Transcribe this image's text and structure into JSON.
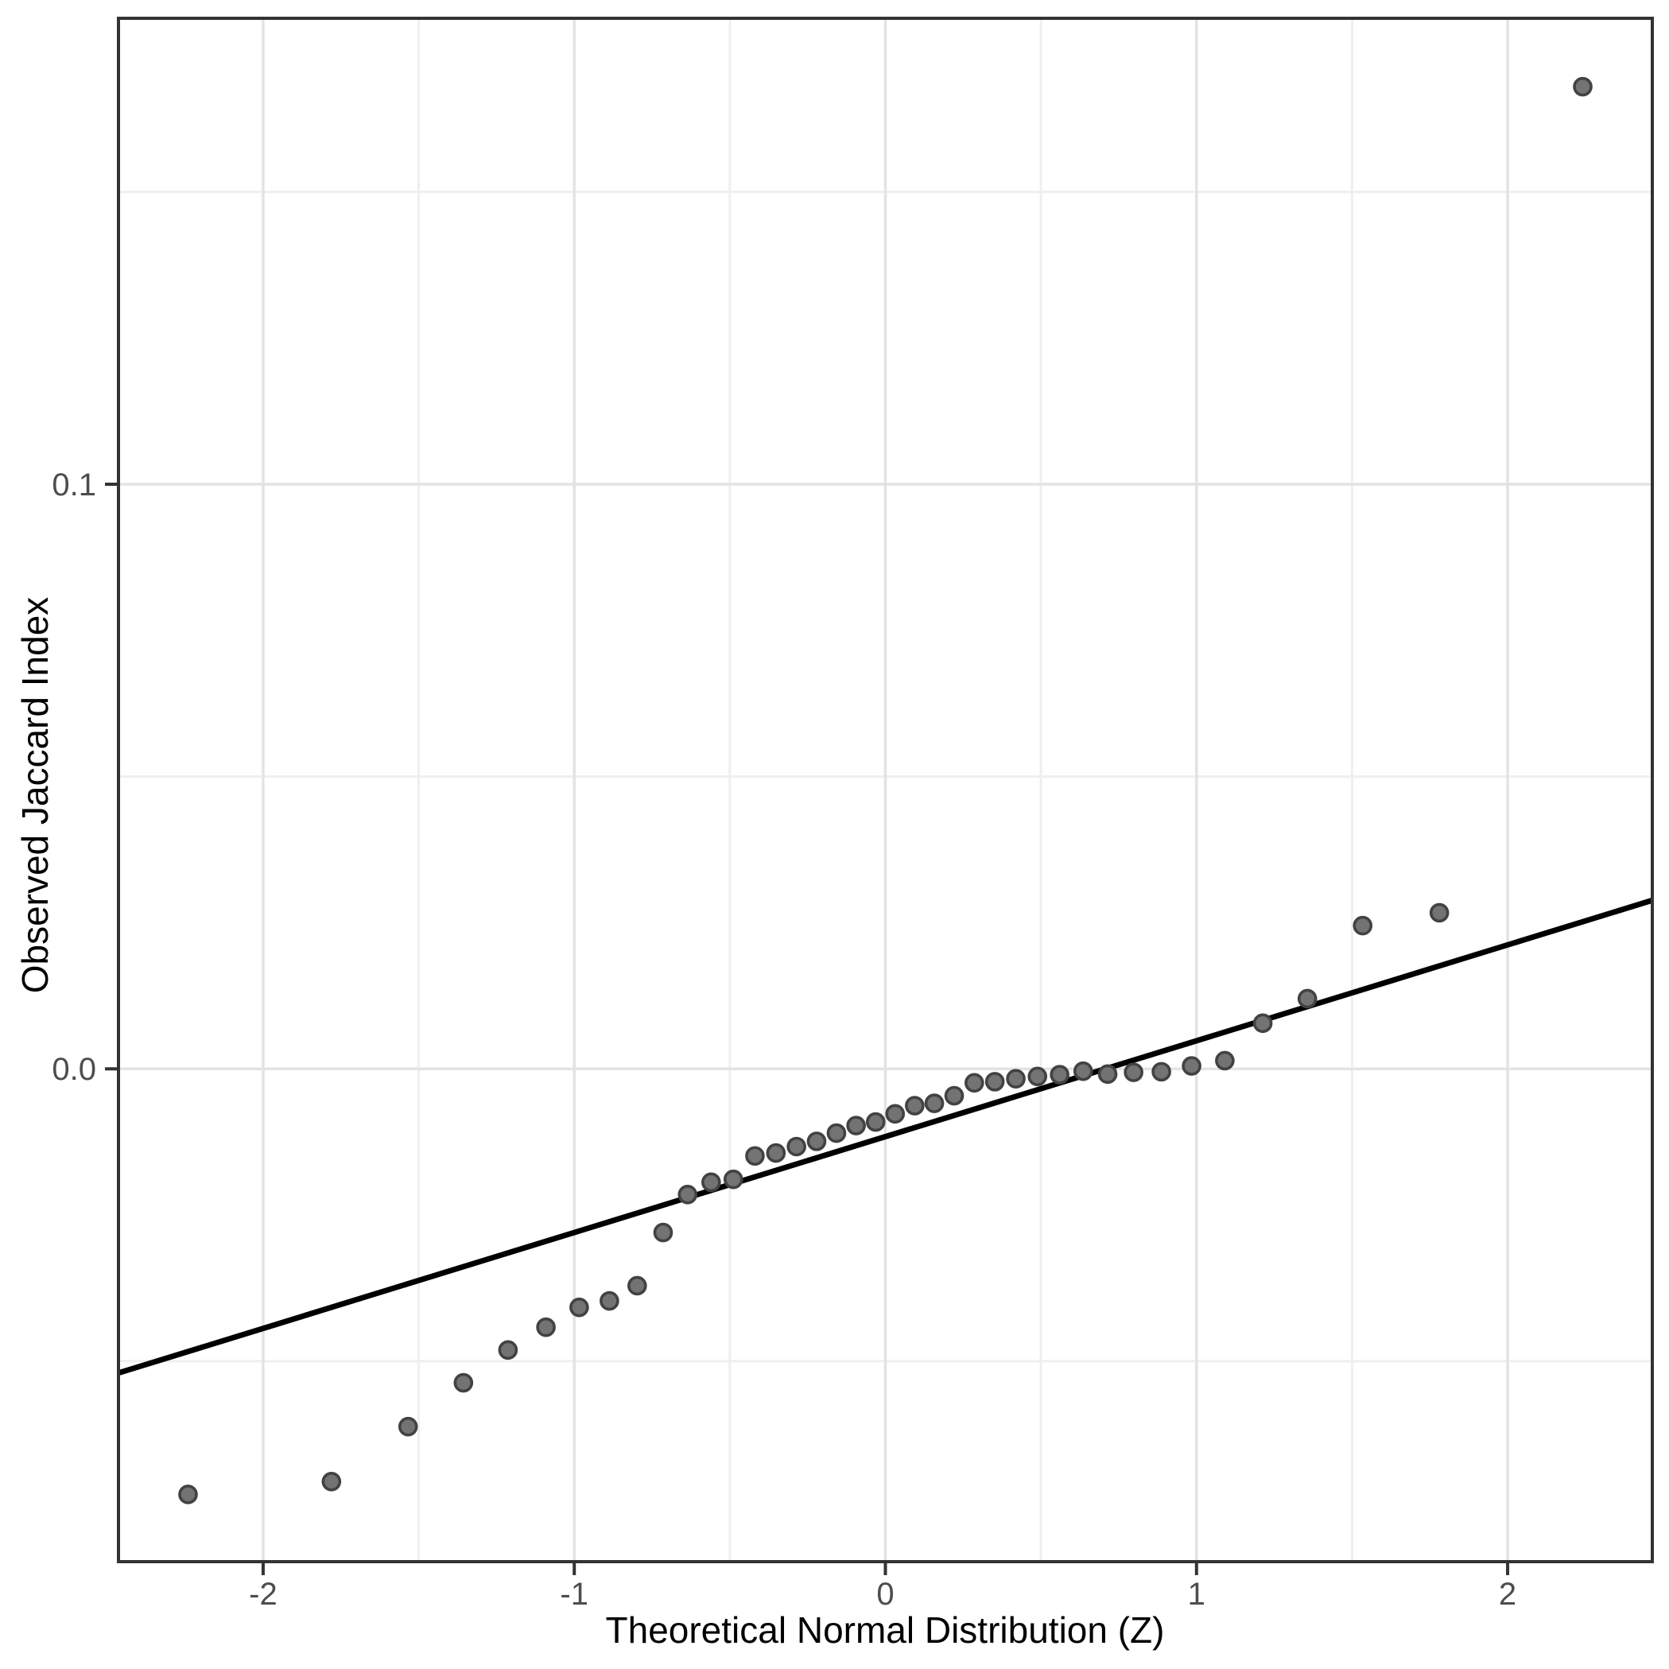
{
  "chart_data": {
    "type": "scatter",
    "title": "",
    "xlabel": "Theoretical Normal Distribution (Z)",
    "ylabel": "Observed Jaccard Index",
    "xlim": [
      -2.465,
      2.465
    ],
    "ylim": [
      -0.0843,
      0.1797
    ],
    "grid": true,
    "legend": "none",
    "x_ticks": [
      {
        "value": -2,
        "label": "-2"
      },
      {
        "value": -1,
        "label": "-1"
      },
      {
        "value": 0,
        "label": "0"
      },
      {
        "value": 1,
        "label": "1"
      },
      {
        "value": 2,
        "label": "2"
      }
    ],
    "y_ticks": [
      {
        "value": 0.0,
        "label": "0.0"
      },
      {
        "value": 0.1,
        "label": "0.1"
      }
    ],
    "x_minor": [
      -1.5,
      -0.5,
      0.5,
      1.5
    ],
    "y_minor": [
      -0.05,
      0.05,
      0.15
    ],
    "points": [
      [
        -2.2414,
        -0.0728
      ],
      [
        -1.7805,
        -0.0706
      ],
      [
        -1.5341,
        -0.0612
      ],
      [
        -1.3563,
        -0.0537
      ],
      [
        -1.213,
        -0.0481
      ],
      [
        -1.091,
        -0.0442
      ],
      [
        -0.9842,
        -0.0408
      ],
      [
        -0.8871,
        -0.0397
      ],
      [
        -0.7978,
        -0.0371
      ],
      [
        -0.7144,
        -0.028
      ],
      [
        -0.6357,
        -0.0215
      ],
      [
        -0.5601,
        -0.0194
      ],
      [
        -0.4888,
        -0.0189
      ],
      [
        -0.4193,
        -0.0149
      ],
      [
        -0.3518,
        -0.0144
      ],
      [
        -0.2858,
        -0.0133
      ],
      [
        -0.2211,
        -0.0124
      ],
      [
        -0.1573,
        -0.011
      ],
      [
        -0.0942,
        -0.0097
      ],
      [
        -0.0313,
        -0.0091
      ],
      [
        0.0313,
        -0.0077
      ],
      [
        0.0942,
        -0.0063
      ],
      [
        0.1573,
        -0.0059
      ],
      [
        0.2211,
        -0.0046
      ],
      [
        0.2858,
        -0.0024
      ],
      [
        0.3518,
        -0.0022
      ],
      [
        0.4193,
        -0.0017
      ],
      [
        0.4888,
        -0.0013
      ],
      [
        0.5601,
        -0.001
      ],
      [
        0.6357,
        -0.0004
      ],
      [
        0.7144,
        -0.0009
      ],
      [
        0.7978,
        -0.0006
      ],
      [
        0.8871,
        -0.0005
      ],
      [
        0.9842,
        0.0005
      ],
      [
        1.091,
        0.0014
      ],
      [
        1.213,
        0.0078
      ],
      [
        1.3563,
        0.012
      ],
      [
        1.5341,
        0.0245
      ],
      [
        1.7805,
        0.0267
      ],
      [
        2.2414,
        0.168
      ]
    ],
    "reference_line": {
      "slope": 0.0164,
      "intercept": -0.0116
    },
    "point_count": 40,
    "colors": {
      "point_fill": "#737373",
      "point_stroke": "#424242",
      "reference_line": "#000000",
      "grid_major": "#e3e3e3",
      "grid_minor": "#efefef",
      "panel_border": "#333333",
      "tick_mark": "#333333",
      "tick_text": "#4d4d4d",
      "axis_title_text": "#000000",
      "background": "#ffffff"
    }
  }
}
